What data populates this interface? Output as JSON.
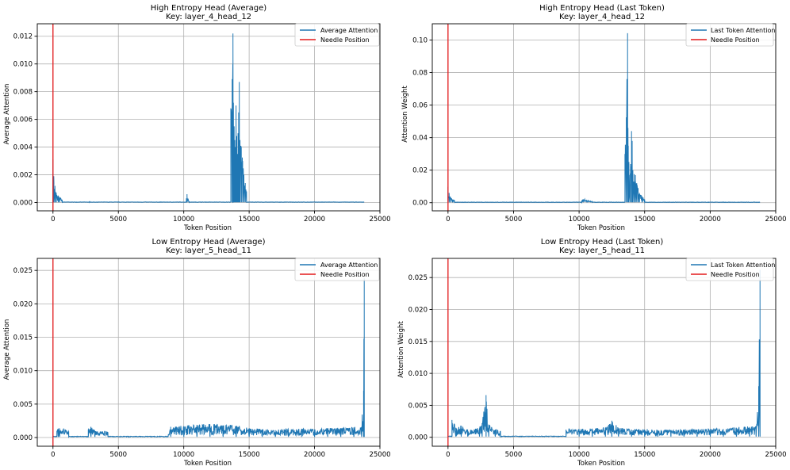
{
  "chart_data": [
    {
      "type": "line",
      "title": "High Entropy Head (Average)",
      "subtitle": "Key: layer_4_head_12",
      "xlabel": "Token Position",
      "ylabel": "Average Attention",
      "xlim": [
        -1200,
        25000
      ],
      "ylim": [
        -0.0006,
        0.0129
      ],
      "xticks": [
        0,
        5000,
        10000,
        15000,
        20000,
        25000
      ],
      "yticks": [
        0.0,
        0.002,
        0.004,
        0.006,
        0.008,
        0.01,
        0.012
      ],
      "ytick_labels": [
        "0.000",
        "0.002",
        "0.004",
        "0.006",
        "0.008",
        "0.010",
        "0.012"
      ],
      "grid": true,
      "legend_position": "top-right",
      "legend": [
        "Average Attention",
        "Needle Position"
      ],
      "needle_x": 0,
      "series": [
        {
          "name": "Average Attention",
          "x_end": 23800,
          "floor": 2e-05,
          "peaks": [
            [
              0,
              0.0031
            ],
            [
              60,
              0.0019
            ],
            [
              150,
              0.0012
            ],
            [
              250,
              0.0007
            ],
            [
              400,
              0.0005
            ],
            [
              500,
              0.0004
            ],
            [
              700,
              0.0002
            ],
            [
              2800,
              0.0001
            ],
            [
              10200,
              0.0003
            ],
            [
              10250,
              0.0006
            ],
            [
              10400,
              0.0001
            ],
            [
              13600,
              0.0068
            ],
            [
              13700,
              0.0089
            ],
            [
              13760,
              0.0122
            ],
            [
              13800,
              0.0072
            ],
            [
              13850,
              0.0055
            ],
            [
              13900,
              0.0045
            ],
            [
              13950,
              0.004
            ],
            [
              14000,
              0.007
            ],
            [
              14050,
              0.0048
            ],
            [
              14100,
              0.0035
            ],
            [
              14150,
              0.005
            ],
            [
              14200,
              0.0065
            ],
            [
              14250,
              0.0087
            ],
            [
              14300,
              0.0045
            ],
            [
              14400,
              0.004
            ],
            [
              14500,
              0.003
            ],
            [
              14600,
              0.002
            ],
            [
              14700,
              0.0014
            ],
            [
              14800,
              0.0008
            ]
          ]
        }
      ]
    },
    {
      "type": "line",
      "title": "High Entropy Head (Last Token)",
      "subtitle": "Key: layer_4_head_12",
      "xlabel": "Token Position",
      "ylabel": "Attention Weight",
      "xlim": [
        -1200,
        25000
      ],
      "ylim": [
        -0.005,
        0.11
      ],
      "xticks": [
        0,
        5000,
        10000,
        15000,
        20000,
        25000
      ],
      "yticks": [
        0.0,
        0.02,
        0.04,
        0.06,
        0.08,
        0.1
      ],
      "ytick_labels": [
        "0.00",
        "0.02",
        "0.04",
        "0.06",
        "0.08",
        "0.10"
      ],
      "grid": true,
      "legend_position": "top-right",
      "legend": [
        "Last Token Attention",
        "Needle Position"
      ],
      "needle_x": 0,
      "series": [
        {
          "name": "Last Token Attention",
          "x_end": 23800,
          "floor": 0.0002,
          "peaks": [
            [
              0,
              0.0098
            ],
            [
              80,
              0.006
            ],
            [
              200,
              0.0035
            ],
            [
              350,
              0.002
            ],
            [
              500,
              0.0015
            ],
            [
              10200,
              0.0012
            ],
            [
              10300,
              0.0022
            ],
            [
              11000,
              0.0008
            ],
            [
              13500,
              0.03
            ],
            [
              13600,
              0.0525
            ],
            [
              13700,
              0.1042
            ],
            [
              13750,
              0.035
            ],
            [
              13800,
              0.025
            ],
            [
              13900,
              0.018
            ],
            [
              14000,
              0.044
            ],
            [
              14050,
              0.038
            ],
            [
              14100,
              0.02
            ],
            [
              14200,
              0.0175
            ],
            [
              14300,
              0.017
            ],
            [
              14400,
              0.012
            ],
            [
              14500,
              0.009
            ],
            [
              14600,
              0.006
            ],
            [
              14800,
              0.004
            ],
            [
              15000,
              0.002
            ]
          ]
        }
      ]
    },
    {
      "type": "line",
      "title": "Low Entropy Head (Average)",
      "subtitle": "Key: layer_5_head_11",
      "xlabel": "Token Position",
      "ylabel": "Average Attention",
      "xlim": [
        -1200,
        25000
      ],
      "ylim": [
        -0.0013,
        0.0268
      ],
      "xticks": [
        0,
        5000,
        10000,
        15000,
        20000,
        25000
      ],
      "yticks": [
        0.0,
        0.005,
        0.01,
        0.015,
        0.02,
        0.025
      ],
      "ytick_labels": [
        "0.000",
        "0.005",
        "0.010",
        "0.015",
        "0.020",
        "0.025"
      ],
      "grid": true,
      "legend_position": "top-right",
      "legend": [
        "Average Attention",
        "Needle Position"
      ],
      "needle_x": 0,
      "series": [
        {
          "name": "Average Attention",
          "x_end": 23800,
          "floor": 0.0001,
          "peaks": [
            [
              300,
              0.001
            ],
            [
              400,
              0.0013
            ],
            [
              500,
              0.0014
            ],
            [
              1200,
              0.0009
            ],
            [
              2700,
              0.0012
            ],
            [
              2900,
              0.0016
            ],
            [
              3200,
              0.001
            ],
            [
              4200,
              0.0008
            ],
            [
              5800,
              0.0002
            ],
            [
              7500,
              0.0002
            ],
            [
              8800,
              0.0002
            ],
            [
              9000,
              0.0016
            ],
            [
              10000,
              0.0017
            ],
            [
              11000,
              0.0019
            ],
            [
              12000,
              0.002
            ],
            [
              13000,
              0.0018
            ],
            [
              14000,
              0.0017
            ],
            [
              15000,
              0.0014
            ],
            [
              16000,
              0.0012
            ],
            [
              17000,
              0.0011
            ],
            [
              18000,
              0.0012
            ],
            [
              19000,
              0.0013
            ],
            [
              20000,
              0.0012
            ],
            [
              21000,
              0.0013
            ],
            [
              22000,
              0.0014
            ],
            [
              23000,
              0.0015
            ],
            [
              23600,
              0.0016
            ],
            [
              23750,
              0.007
            ],
            [
              23800,
              0.0238
            ]
          ]
        }
      ]
    },
    {
      "type": "line",
      "title": "Low Entropy Head (Last Token)",
      "subtitle": "Key: layer_5_head_11",
      "xlabel": "Token Position",
      "ylabel": "Attention Weight",
      "xlim": [
        -1200,
        25000
      ],
      "ylim": [
        -0.0014,
        0.028
      ],
      "xticks": [
        0,
        5000,
        10000,
        15000,
        20000,
        25000
      ],
      "yticks": [
        0.0,
        0.005,
        0.01,
        0.015,
        0.02,
        0.025
      ],
      "ytick_labels": [
        "0.000",
        "0.005",
        "0.010",
        "0.015",
        "0.020",
        "0.025"
      ],
      "grid": true,
      "legend_position": "top-right",
      "legend": [
        "Last Token Attention",
        "Needle Position"
      ],
      "needle_x": 0,
      "series": [
        {
          "name": "Last Token Attention",
          "x_end": 23800,
          "floor": 0.0001,
          "peaks": [
            [
              300,
              0.0027
            ],
            [
              600,
              0.0015
            ],
            [
              1000,
              0.0018
            ],
            [
              1500,
              0.0012
            ],
            [
              2400,
              0.0014
            ],
            [
              2600,
              0.0022
            ],
            [
              2900,
              0.0066
            ],
            [
              3100,
              0.002
            ],
            [
              3600,
              0.0012
            ],
            [
              4000,
              0.001
            ],
            [
              5500,
              0.0002
            ],
            [
              9000,
              0.0012
            ],
            [
              10000,
              0.0013
            ],
            [
              11000,
              0.0013
            ],
            [
              12000,
              0.0015
            ],
            [
              12500,
              0.0026
            ],
            [
              13000,
              0.0014
            ],
            [
              14000,
              0.0012
            ],
            [
              15000,
              0.0012
            ],
            [
              16000,
              0.0011
            ],
            [
              17000,
              0.0011
            ],
            [
              18000,
              0.0012
            ],
            [
              19000,
              0.0012
            ],
            [
              20000,
              0.0013
            ],
            [
              21000,
              0.0013
            ],
            [
              22000,
              0.0015
            ],
            [
              23000,
              0.0016
            ],
            [
              23500,
              0.0018
            ],
            [
              23700,
              0.008
            ],
            [
              23800,
              0.0262
            ]
          ]
        }
      ]
    }
  ]
}
